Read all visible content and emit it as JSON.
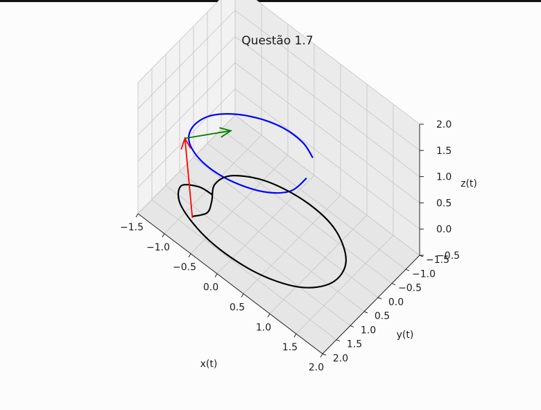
{
  "chart_data": {
    "type": "line3d",
    "title": "Questão 1.7",
    "xlabel": "x(t)",
    "ylabel": "y(t)",
    "zlabel": "z(t)",
    "xlim": [
      -1.5,
      2.0
    ],
    "ylim": [
      -1.5,
      2.0
    ],
    "zlim": [
      -0.5,
      2.0
    ],
    "xticks": [
      "−1.5",
      "−1.0",
      "−0.5",
      "0.0",
      "0.5",
      "1.0",
      "1.5",
      "2.0"
    ],
    "yticks": [
      "−1.5",
      "−1.0",
      "−0.5",
      "0.0",
      "0.5",
      "1.0",
      "1.5",
      "2.0"
    ],
    "zticks": [
      "−0.5",
      "0.0",
      "0.5",
      "1.0",
      "1.5",
      "2.0"
    ],
    "grid": true,
    "series": [
      {
        "kind": "curve",
        "color": "#0000ff",
        "x": [
          0.5,
          0.28,
          -0.05,
          -0.4,
          -0.73,
          -0.97,
          -1.03,
          -0.9,
          -0.55,
          -0.08,
          0.4,
          0.7,
          0.75
        ],
        "y": [
          -0.5,
          -0.56,
          -0.48,
          -0.25,
          0.1,
          0.5,
          0.95,
          1.28,
          1.45,
          1.4,
          1.12,
          0.7,
          0.2
        ],
        "z": [
          0.75,
          0.84,
          0.91,
          0.95,
          0.97,
          0.95,
          0.93,
          0.91,
          0.9,
          0.9,
          0.9,
          0.91,
          0.93
        ]
      },
      {
        "kind": "curve",
        "color": "#000000",
        "x": [
          -0.6,
          -0.48,
          -0.55,
          -0.7,
          -0.6,
          -0.15,
          0.5,
          1.1,
          1.55,
          1.62,
          1.3,
          0.65,
          -0.15,
          -0.82,
          -1.05,
          -0.85,
          -0.62
        ],
        "y": [
          1.75,
          1.45,
          1.15,
          0.75,
          0.3,
          -0.12,
          -0.3,
          -0.18,
          0.3,
          0.95,
          1.55,
          1.92,
          1.98,
          1.72,
          1.32,
          1.05,
          1.0
        ],
        "z": [
          0,
          0,
          0,
          0,
          0,
          0,
          0,
          0,
          0,
          0,
          0,
          0,
          0,
          0,
          0,
          0,
          0
        ]
      },
      {
        "kind": "arrow",
        "color": "#008000",
        "from": [
          -0.9,
          1.45,
          1.1
        ],
        "to": [
          0.05,
          1.6,
          2.05
        ]
      },
      {
        "kind": "arrow",
        "color": "#ff0000",
        "from": [
          -0.6,
          1.75,
          -0.03
        ],
        "to": [
          -0.9,
          1.45,
          1.1
        ]
      }
    ]
  }
}
